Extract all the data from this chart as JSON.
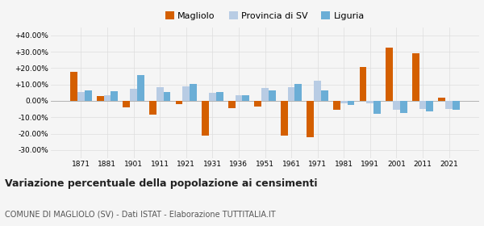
{
  "years": [
    1871,
    1881,
    1901,
    1911,
    1921,
    1931,
    1936,
    1951,
    1961,
    1971,
    1981,
    1991,
    2001,
    2011,
    2021
  ],
  "magliolo": [
    17.5,
    3.0,
    -4.0,
    -8.5,
    -2.0,
    -21.0,
    -4.5,
    -3.5,
    -21.0,
    -22.0,
    -5.5,
    20.5,
    32.5,
    29.0,
    2.0
  ],
  "provincia_sv": [
    5.5,
    3.5,
    7.5,
    8.5,
    9.0,
    5.0,
    3.5,
    8.0,
    8.5,
    12.5,
    -1.5,
    -1.5,
    -5.5,
    -5.0,
    -5.0
  ],
  "liguria": [
    6.5,
    6.0,
    15.5,
    5.5,
    10.5,
    5.5,
    3.5,
    6.5,
    10.5,
    6.5,
    -2.5,
    -8.0,
    -7.5,
    -6.5,
    -5.5
  ],
  "magliolo_color": "#d45f00",
  "provincia_color": "#b8cce4",
  "liguria_color": "#6baed6",
  "title": "Variazione percentuale della popolazione ai censimenti",
  "subtitle": "COMUNE DI MAGLIOLO (SV) - Dati ISTAT - Elaborazione TUTTITALIA.IT",
  "ylim": [
    -35,
    45
  ],
  "yticks": [
    -30,
    -20,
    -10,
    0,
    10,
    20,
    30,
    40
  ],
  "background_color": "#f5f5f5",
  "grid_color": "#dddddd"
}
